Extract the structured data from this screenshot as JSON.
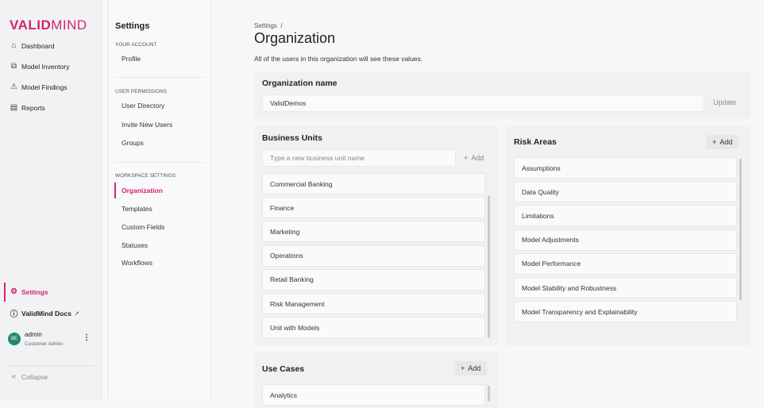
{
  "brand": {
    "logo_bold": "VALID",
    "logo_light": "MIND",
    "accent": "#d6246e"
  },
  "nav": {
    "items": [
      {
        "label": "Dashboard",
        "icon": "home-icon"
      },
      {
        "label": "Model Inventory",
        "icon": "cubes-icon"
      },
      {
        "label": "Model Findings",
        "icon": "warning-icon"
      },
      {
        "label": "Reports",
        "icon": "chart-icon"
      }
    ],
    "settings": "Settings",
    "docs": "ValidMind Docs",
    "user": {
      "initials": "BE",
      "name": "admin",
      "role": "Customer Admin"
    },
    "collapse": "Collapse"
  },
  "settings_nav": {
    "title": "Settings",
    "sections": [
      {
        "label": "YOUR ACCOUNT",
        "items": [
          "Profile"
        ]
      },
      {
        "label": "USER PERMISSIONS",
        "items": [
          "User Directory",
          "Invite New Users",
          "Groups"
        ]
      },
      {
        "label": "WORKSPACE SETTINGS",
        "items": [
          "Organization",
          "Templates",
          "Custom Fields",
          "Statuses",
          "Workflows"
        ]
      }
    ],
    "selected": "Organization"
  },
  "main": {
    "breadcrumb": "Settings  /",
    "title": "Organization",
    "description": "All of the users in this organization will see these values.",
    "org": {
      "label": "Organization name",
      "value": "ValidDemos",
      "update": "Update"
    },
    "business_units": {
      "title": "Business Units",
      "placeholder": "Type a new business unit name",
      "add": "Add",
      "items": [
        "Commercial Banking",
        "Finance",
        "Marketing",
        "Operations",
        "Retail Banking",
        "Risk Management",
        "Unit with Models"
      ]
    },
    "risk_areas": {
      "title": "Risk Areas",
      "add": "Add",
      "items": [
        "Assumptions",
        "Data Quality",
        "Limitations",
        "Model Adjustments",
        "Model Performance",
        "Model Stability and Robustness",
        "Model Transparency and Explainability"
      ]
    },
    "use_cases": {
      "title": "Use Cases",
      "add": "Add",
      "items": [
        "Analytics"
      ]
    }
  }
}
